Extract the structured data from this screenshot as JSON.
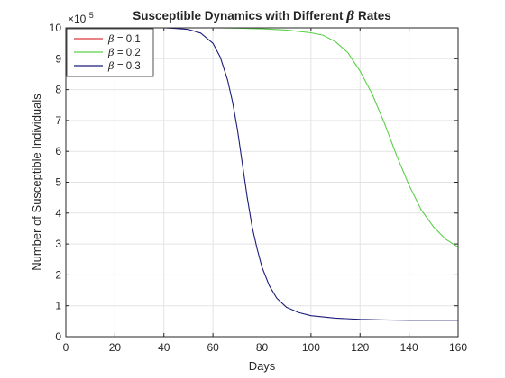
{
  "chart_data": {
    "type": "line",
    "title_prefix": "Susceptible Dynamics with Different",
    "title_symbol": "β",
    "title_suffix": "Rates",
    "xlabel": "Days",
    "ylabel": "Number of Susceptible  Individuals",
    "xlim": [
      0,
      160
    ],
    "ylim": [
      0,
      10
    ],
    "y_multiplier": "×10",
    "y_multiplier_exp": "5",
    "xticks": [
      "0",
      "20",
      "40",
      "60",
      "80",
      "100",
      "120",
      "140",
      "160"
    ],
    "yticks": [
      "0",
      "1",
      "2",
      "3",
      "4",
      "5",
      "6",
      "7",
      "8",
      "9",
      "10"
    ],
    "grid": true,
    "legend_position": "top-left",
    "series": [
      {
        "symbol": "β",
        "label": "= 0.1",
        "color": "#d9383a",
        "x": [
          0,
          20,
          40,
          60,
          80,
          100,
          120,
          140,
          160
        ],
        "y": [
          10,
          10,
          10,
          10,
          10,
          10,
          10,
          10,
          10
        ]
      },
      {
        "symbol": "β",
        "label": "= 0.2",
        "color": "#5ccf4a",
        "x": [
          0,
          20,
          40,
          60,
          70,
          80,
          90,
          100,
          105,
          110,
          115,
          120,
          125,
          130,
          135,
          140,
          145,
          150,
          155,
          160
        ],
        "y": [
          10,
          10,
          10,
          10,
          9.99,
          9.97,
          9.93,
          9.84,
          9.76,
          9.55,
          9.2,
          8.6,
          7.85,
          6.9,
          5.85,
          4.9,
          4.1,
          3.55,
          3.15,
          2.9
        ]
      },
      {
        "symbol": "β",
        "label": "= 0.3",
        "color": "#1c1c7a",
        "x": [
          0,
          20,
          40,
          45,
          50,
          55,
          60,
          63,
          66,
          68,
          70,
          72,
          74,
          76,
          78,
          80,
          83,
          86,
          90,
          95,
          100,
          110,
          120,
          130,
          140,
          150,
          160
        ],
        "y": [
          10,
          10,
          10,
          9.98,
          9.95,
          9.83,
          9.5,
          9.05,
          8.3,
          7.6,
          6.7,
          5.6,
          4.5,
          3.55,
          2.85,
          2.25,
          1.65,
          1.25,
          0.95,
          0.78,
          0.68,
          0.6,
          0.56,
          0.54,
          0.53,
          0.53,
          0.53
        ]
      }
    ]
  }
}
